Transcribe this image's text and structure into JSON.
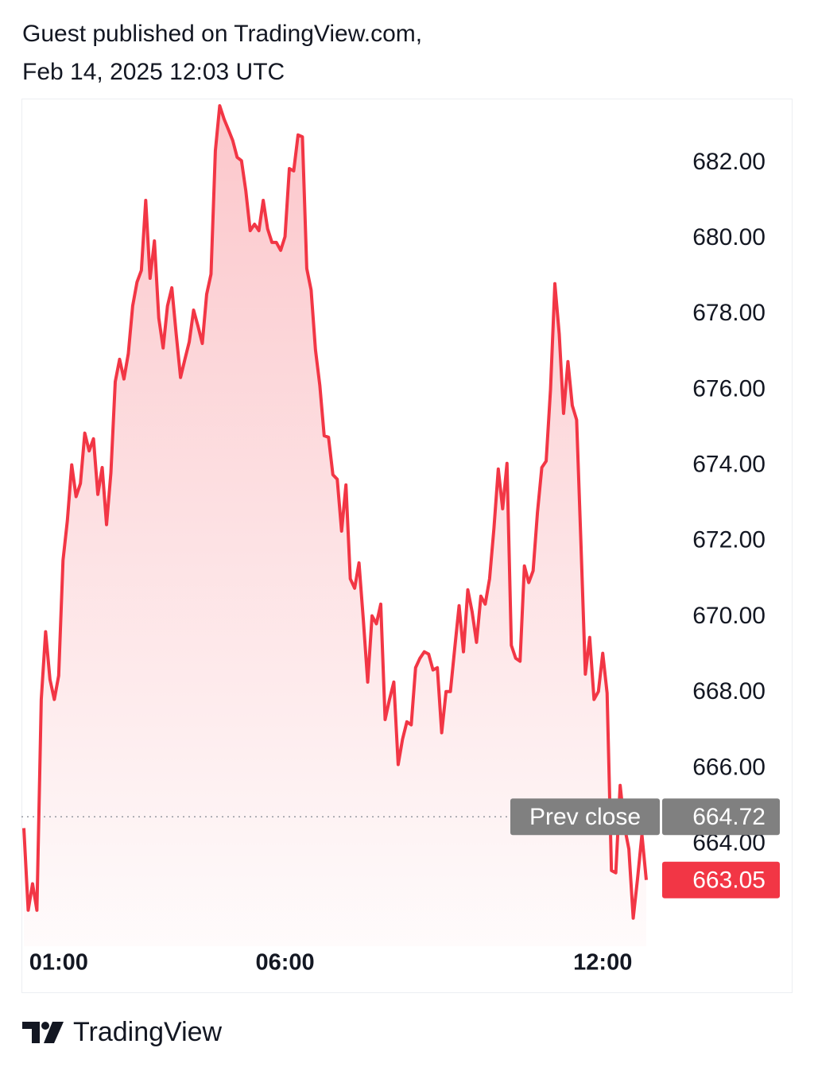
{
  "header": {
    "line1": "Guest published on TradingView.com,",
    "line2": "Feb 14, 2025 12:03 UTC"
  },
  "chart_data": {
    "type": "line",
    "color": "#f23645",
    "values": [
      664.42,
      662.25,
      662.95,
      662.25,
      667.82,
      669.61,
      668.35,
      667.82,
      668.45,
      671.5,
      672.55,
      674.02,
      673.18,
      673.53,
      674.86,
      674.39,
      674.71,
      673.24,
      673.95,
      672.44,
      673.81,
      676.22,
      676.81,
      676.29,
      676.96,
      678.22,
      678.85,
      679.16,
      681.01,
      678.95,
      679.94,
      677.9,
      677.11,
      678.22,
      678.7,
      677.48,
      676.33,
      676.81,
      677.27,
      678.11,
      677.69,
      677.23,
      678.53,
      679.06,
      682.32,
      683.51,
      683.16,
      682.88,
      682.59,
      682.15,
      682.06,
      681.26,
      680.21,
      680.38,
      680.21,
      681.01,
      680.26,
      679.9,
      679.9,
      679.69,
      680.05,
      681.85,
      681.79,
      682.74,
      682.69,
      679.21,
      678.64,
      677.06,
      676.12,
      674.79,
      674.75,
      673.76,
      673.64,
      672.27,
      673.49,
      671.01,
      670.76,
      671.43,
      669.92,
      668.28,
      670.03,
      669.82,
      670.34,
      667.29,
      667.82,
      668.28,
      666.1,
      666.77,
      667.23,
      667.15,
      668.66,
      668.91,
      669.08,
      669.02,
      668.6,
      668.66,
      666.94,
      668.03,
      668.03,
      669.18,
      670.3,
      669.08,
      670.72,
      670.13,
      669.33,
      670.55,
      670.34,
      671.01,
      672.34,
      673.91,
      672.86,
      674.06,
      669.25,
      668.91,
      668.83,
      671.35,
      670.91,
      671.22,
      672.76,
      673.95,
      674.12,
      676.01,
      678.81,
      677.48,
      675.38,
      676.75,
      675.59,
      675.21,
      671.92,
      668.49,
      669.46,
      667.82,
      668.03,
      669.04,
      667.99,
      663.3,
      663.24,
      665.55,
      664.46,
      663.87,
      662.04,
      663.09,
      664.25,
      663.05
    ],
    "ylim": [
      661.3,
      683.7
    ],
    "yticks": [
      {
        "value": 664,
        "label": "664.00"
      },
      {
        "value": 666,
        "label": "666.00"
      },
      {
        "value": 668,
        "label": "668.00"
      },
      {
        "value": 670,
        "label": "670.00"
      },
      {
        "value": 672,
        "label": "672.00"
      },
      {
        "value": 674,
        "label": "674.00"
      },
      {
        "value": 676,
        "label": "676.00"
      },
      {
        "value": 678,
        "label": "678.00"
      },
      {
        "value": 680,
        "label": "680.00"
      },
      {
        "value": 682,
        "label": "682.00"
      }
    ],
    "xticks": [
      {
        "value": 8,
        "label": "01:00"
      },
      {
        "value": 60,
        "label": "06:00"
      },
      {
        "value": 133,
        "label": "12:00"
      }
    ],
    "prev_close": {
      "label": "Prev close",
      "value": 664.72
    }
  },
  "footer": {
    "brand": "TradingView"
  }
}
